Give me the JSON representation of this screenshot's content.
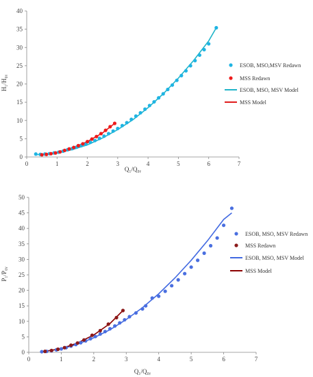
{
  "chart_data": [
    {
      "type": "scatter",
      "xlabel": "Q₁/Q₀ᵧ",
      "ylabel": "H₁/H₀ᵧ",
      "xlim": [
        0,
        7
      ],
      "ylim": [
        0,
        40
      ],
      "xticks": [
        0,
        1,
        2,
        3,
        4,
        5,
        6,
        7
      ],
      "yticks": [
        0,
        5,
        10,
        15,
        20,
        25,
        30,
        35,
        40
      ],
      "legend_position": "right",
      "grid": false,
      "series": [
        {
          "name": "ESOB, MSO,MSV  Redawn",
          "kind": "points",
          "color": "#1fb4e3",
          "x": [
            0.3,
            0.45,
            0.6,
            0.75,
            0.9,
            1.05,
            1.2,
            1.35,
            1.5,
            1.65,
            1.8,
            1.95,
            2.1,
            2.25,
            2.4,
            2.55,
            2.7,
            2.85,
            3.0,
            3.15,
            3.3,
            3.45,
            3.6,
            3.75,
            3.9,
            4.05,
            4.2,
            4.35,
            4.5,
            4.65,
            4.8,
            4.95,
            5.1,
            5.25,
            5.4,
            5.55,
            5.7,
            5.85,
            6.0,
            6.25
          ],
          "y": [
            0.8,
            0.7,
            0.8,
            0.9,
            1.1,
            1.3,
            1.6,
            2.0,
            2.3,
            2.7,
            3.1,
            3.5,
            4.0,
            4.5,
            5.1,
            5.7,
            6.4,
            7.1,
            7.8,
            8.6,
            9.4,
            10.3,
            11.2,
            12.1,
            13.1,
            14.1,
            15.1,
            16.2,
            17.3,
            18.5,
            19.7,
            21.0,
            22.3,
            23.6,
            25.0,
            26.4,
            27.9,
            29.4,
            31.0,
            35.4
          ]
        },
        {
          "name": "MSS  Redawn",
          "kind": "points",
          "color": "#ee1c1c",
          "x": [
            0.5,
            0.65,
            0.8,
            0.95,
            1.1,
            1.25,
            1.4,
            1.55,
            1.7,
            1.85,
            2.0,
            2.15,
            2.3,
            2.45,
            2.6,
            2.75,
            2.9
          ],
          "y": [
            0.6,
            0.7,
            0.9,
            1.1,
            1.4,
            1.8,
            2.2,
            2.6,
            3.1,
            3.6,
            4.2,
            4.9,
            5.6,
            6.4,
            7.3,
            8.3,
            9.2
          ]
        },
        {
          "name": "ESOB, MSO, MSV Model",
          "kind": "line",
          "color": "#1fb4c8",
          "x": [
            0.3,
            1.0,
            1.5,
            2.0,
            2.5,
            3.0,
            3.5,
            4.0,
            4.5,
            5.0,
            5.5,
            6.0,
            6.25
          ],
          "y": [
            0.6,
            1.1,
            2.0,
            3.3,
            5.2,
            7.5,
            10.2,
            13.5,
            17.3,
            21.6,
            26.4,
            31.8,
            35.4
          ]
        },
        {
          "name": "MSS Model",
          "kind": "line",
          "color": "#e01b1b",
          "x": [
            0.5,
            1.0,
            1.5,
            2.0,
            2.5,
            2.9
          ],
          "y": [
            0.6,
            1.2,
            2.5,
            4.2,
            6.6,
            9.2
          ]
        }
      ]
    },
    {
      "type": "scatter",
      "xlabel": "Q₁/Q₀ᵧ",
      "ylabel": "P₁/P₀ᵧ",
      "xlim": [
        0,
        7
      ],
      "ylim": [
        0,
        50
      ],
      "xticks": [
        0,
        1,
        2,
        3,
        4,
        5,
        6,
        7
      ],
      "yticks": [
        0,
        5,
        10,
        15,
        20,
        25,
        30,
        35,
        40,
        45,
        50
      ],
      "legend_position": "right",
      "grid": false,
      "series": [
        {
          "name": "ESOB, MSO, MSV  Redawn",
          "kind": "points",
          "color": "#4a6fe0",
          "x": [
            0.4,
            0.55,
            0.7,
            0.85,
            1.0,
            1.15,
            1.3,
            1.45,
            1.6,
            1.75,
            1.9,
            2.05,
            2.2,
            2.35,
            2.5,
            2.65,
            2.8,
            2.95,
            3.1,
            3.3,
            3.5,
            3.6,
            3.8,
            4.0,
            4.2,
            4.4,
            4.6,
            4.8,
            5.0,
            5.2,
            5.4,
            5.6,
            5.8,
            6.0,
            6.25
          ],
          "y": [
            0.2,
            0.3,
            0.5,
            0.8,
            1.1,
            1.5,
            2.0,
            2.5,
            3.1,
            3.7,
            4.4,
            5.1,
            5.9,
            6.7,
            7.6,
            8.5,
            9.5,
            10.5,
            11.5,
            12.7,
            14.0,
            15.0,
            17.5,
            18.1,
            19.7,
            21.5,
            23.4,
            25.4,
            27.5,
            29.7,
            32.0,
            34.4,
            36.9,
            41.0,
            46.5
          ]
        },
        {
          "name": "MSS  Redawn",
          "kind": "points",
          "color": "#8b1a1a",
          "x": [
            0.5,
            0.7,
            0.9,
            1.1,
            1.3,
            1.5,
            1.7,
            1.95,
            2.2,
            2.45,
            2.7,
            2.9
          ],
          "y": [
            0.3,
            0.6,
            1.0,
            1.5,
            2.3,
            3.0,
            4.0,
            5.5,
            7.0,
            9.1,
            11.2,
            13.5
          ]
        },
        {
          "name": "ESOB, MSO, MSV Model",
          "kind": "line",
          "color": "#4169e1",
          "x": [
            0.4,
            1.0,
            1.5,
            2.0,
            2.5,
            3.0,
            3.5,
            4.0,
            4.5,
            5.0,
            5.5,
            6.0,
            6.25
          ],
          "y": [
            0.2,
            1.1,
            2.6,
            4.7,
            7.3,
            10.6,
            14.4,
            18.9,
            24.0,
            29.7,
            36.0,
            42.9,
            45.0
          ]
        },
        {
          "name": "MSS Model",
          "kind": "line",
          "color": "#8b0000",
          "x": [
            0.5,
            1.0,
            1.5,
            2.0,
            2.5,
            2.9
          ],
          "y": [
            0.3,
            1.2,
            3.0,
            5.6,
            9.3,
            13.5
          ]
        }
      ]
    }
  ]
}
